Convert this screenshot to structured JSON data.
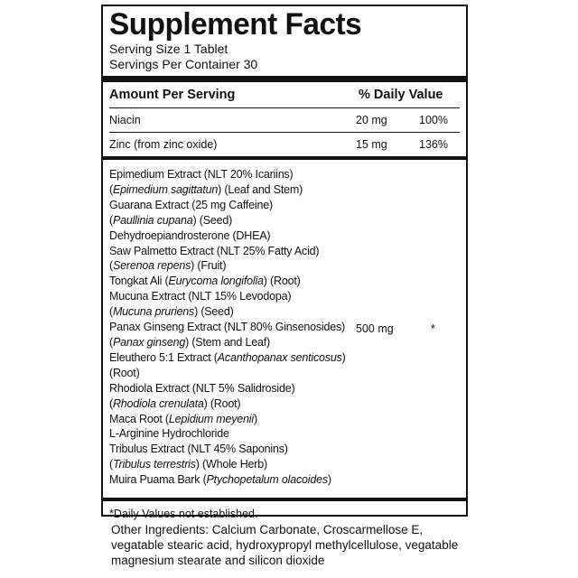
{
  "title": "Supplement Facts",
  "serving_size": "Serving Size 1 Tablet",
  "servings_per_container": "Servings Per Container 30",
  "header": {
    "amount": "Amount Per Serving",
    "dv": "% Daily Value"
  },
  "nutrients": [
    {
      "name": "Niacin",
      "amount": "20 mg",
      "dv": "100%"
    },
    {
      "name": "Zinc (from zinc oxide)",
      "amount": "15 mg",
      "dv": "136%"
    }
  ],
  "blend": {
    "amount": "500 mg",
    "dv": "*",
    "lines": [
      [
        {
          "t": "Epimedium Extract (NLT 20% Icariins)"
        }
      ],
      [
        {
          "t": "("
        },
        {
          "t": "Epimedium sagittatun",
          "i": true
        },
        {
          "t": ") (Leaf and Stem)"
        }
      ],
      [
        {
          "t": "Guarana Extract (25 mg Caffeine)"
        }
      ],
      [
        {
          "t": "("
        },
        {
          "t": "Paullinia cupana",
          "i": true
        },
        {
          "t": ")  (Seed)"
        }
      ],
      [
        {
          "t": "Dehydroepiandrosterone (DHEA)"
        }
      ],
      [
        {
          "t": "Saw Palmetto Extract (NLT 25% Fatty Acid)"
        }
      ],
      [
        {
          "t": "("
        },
        {
          "t": "Serenoa repens",
          "i": true
        },
        {
          "t": ") (Fruit)"
        }
      ],
      [
        {
          "t": "Tongkat Ali ("
        },
        {
          "t": "Eurycoma longifolia",
          "i": true
        },
        {
          "t": ") (Root)"
        }
      ],
      [
        {
          "t": "Mucuna Extract (NLT 15% Levodopa)"
        }
      ],
      [
        {
          "t": "("
        },
        {
          "t": "Mucuna pruriens",
          "i": true
        },
        {
          "t": ") (Seed)"
        }
      ],
      [
        {
          "t": "Panax Ginseng Extract (NLT 80% Ginsenosides)"
        }
      ],
      [
        {
          "t": "("
        },
        {
          "t": "Panax ginseng",
          "i": true
        },
        {
          "t": ") (Stem and Leaf)"
        }
      ],
      [
        {
          "t": "Eleuthero 5:1 Extract ("
        },
        {
          "t": "Acanthopanax senticosus",
          "i": true
        },
        {
          "t": ")"
        }
      ],
      [
        {
          "t": "(Root)"
        }
      ],
      [
        {
          "t": "Rhodiola Extract (NLT 5% Salidroside)"
        }
      ],
      [
        {
          "t": "("
        },
        {
          "t": "Rhodiola crenulata",
          "i": true
        },
        {
          "t": ") (Root)"
        }
      ],
      [
        {
          "t": "Maca Root ("
        },
        {
          "t": "Lepidium meyenii",
          "i": true
        },
        {
          "t": ")"
        }
      ],
      [
        {
          "t": "L-Arginine Hydrochloride"
        }
      ],
      [
        {
          "t": "Tribulus Extract (NLT 45% Saponins)"
        }
      ],
      [
        {
          "t": "("
        },
        {
          "t": "Tribulus terrestris",
          "i": true
        },
        {
          "t": ") (Whole Herb)"
        }
      ],
      [
        {
          "t": "Muira Puama Bark ("
        },
        {
          "t": "Ptychopetalum olacoides",
          "i": true
        },
        {
          "t": ")"
        }
      ]
    ]
  },
  "footnote": "*Daily Values not established.",
  "other_ingredients": "Other Ingredients: Calcium Carbonate, Croscarmellose E, vegatable stearic acid, hydroxypropyl methylcellulose, vegatable magnesium stearate and silicon dioxide"
}
